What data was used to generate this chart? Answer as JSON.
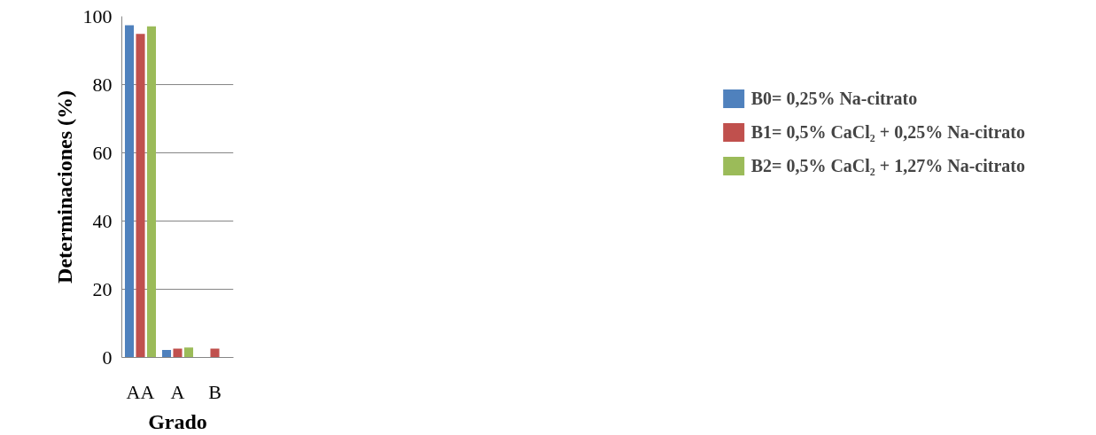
{
  "chart_data": {
    "type": "bar",
    "xlabel": "Grado",
    "ylabel": "Determinaciones (%)",
    "categories": [
      "AA",
      "A",
      "B"
    ],
    "series": [
      {
        "name": "B0= 0,25% Na-citrato",
        "color": "#4f81bd",
        "values": [
          97.4,
          2.2,
          0
        ]
      },
      {
        "name": "B1= 0,5% CaCl₂ + 0,25% Na-citrato",
        "color": "#c0504d",
        "values": [
          94.9,
          2.6,
          2.6
        ]
      },
      {
        "name": "B2= 0,5% CaCl₂ + 1,27% Na-citrato",
        "color": "#9bbb59",
        "values": [
          97.1,
          2.9,
          0
        ]
      }
    ],
    "ylim": [
      0,
      100
    ],
    "yticks": [
      0,
      20,
      40,
      60,
      80,
      100
    ],
    "grid": "y",
    "legend": "right"
  }
}
